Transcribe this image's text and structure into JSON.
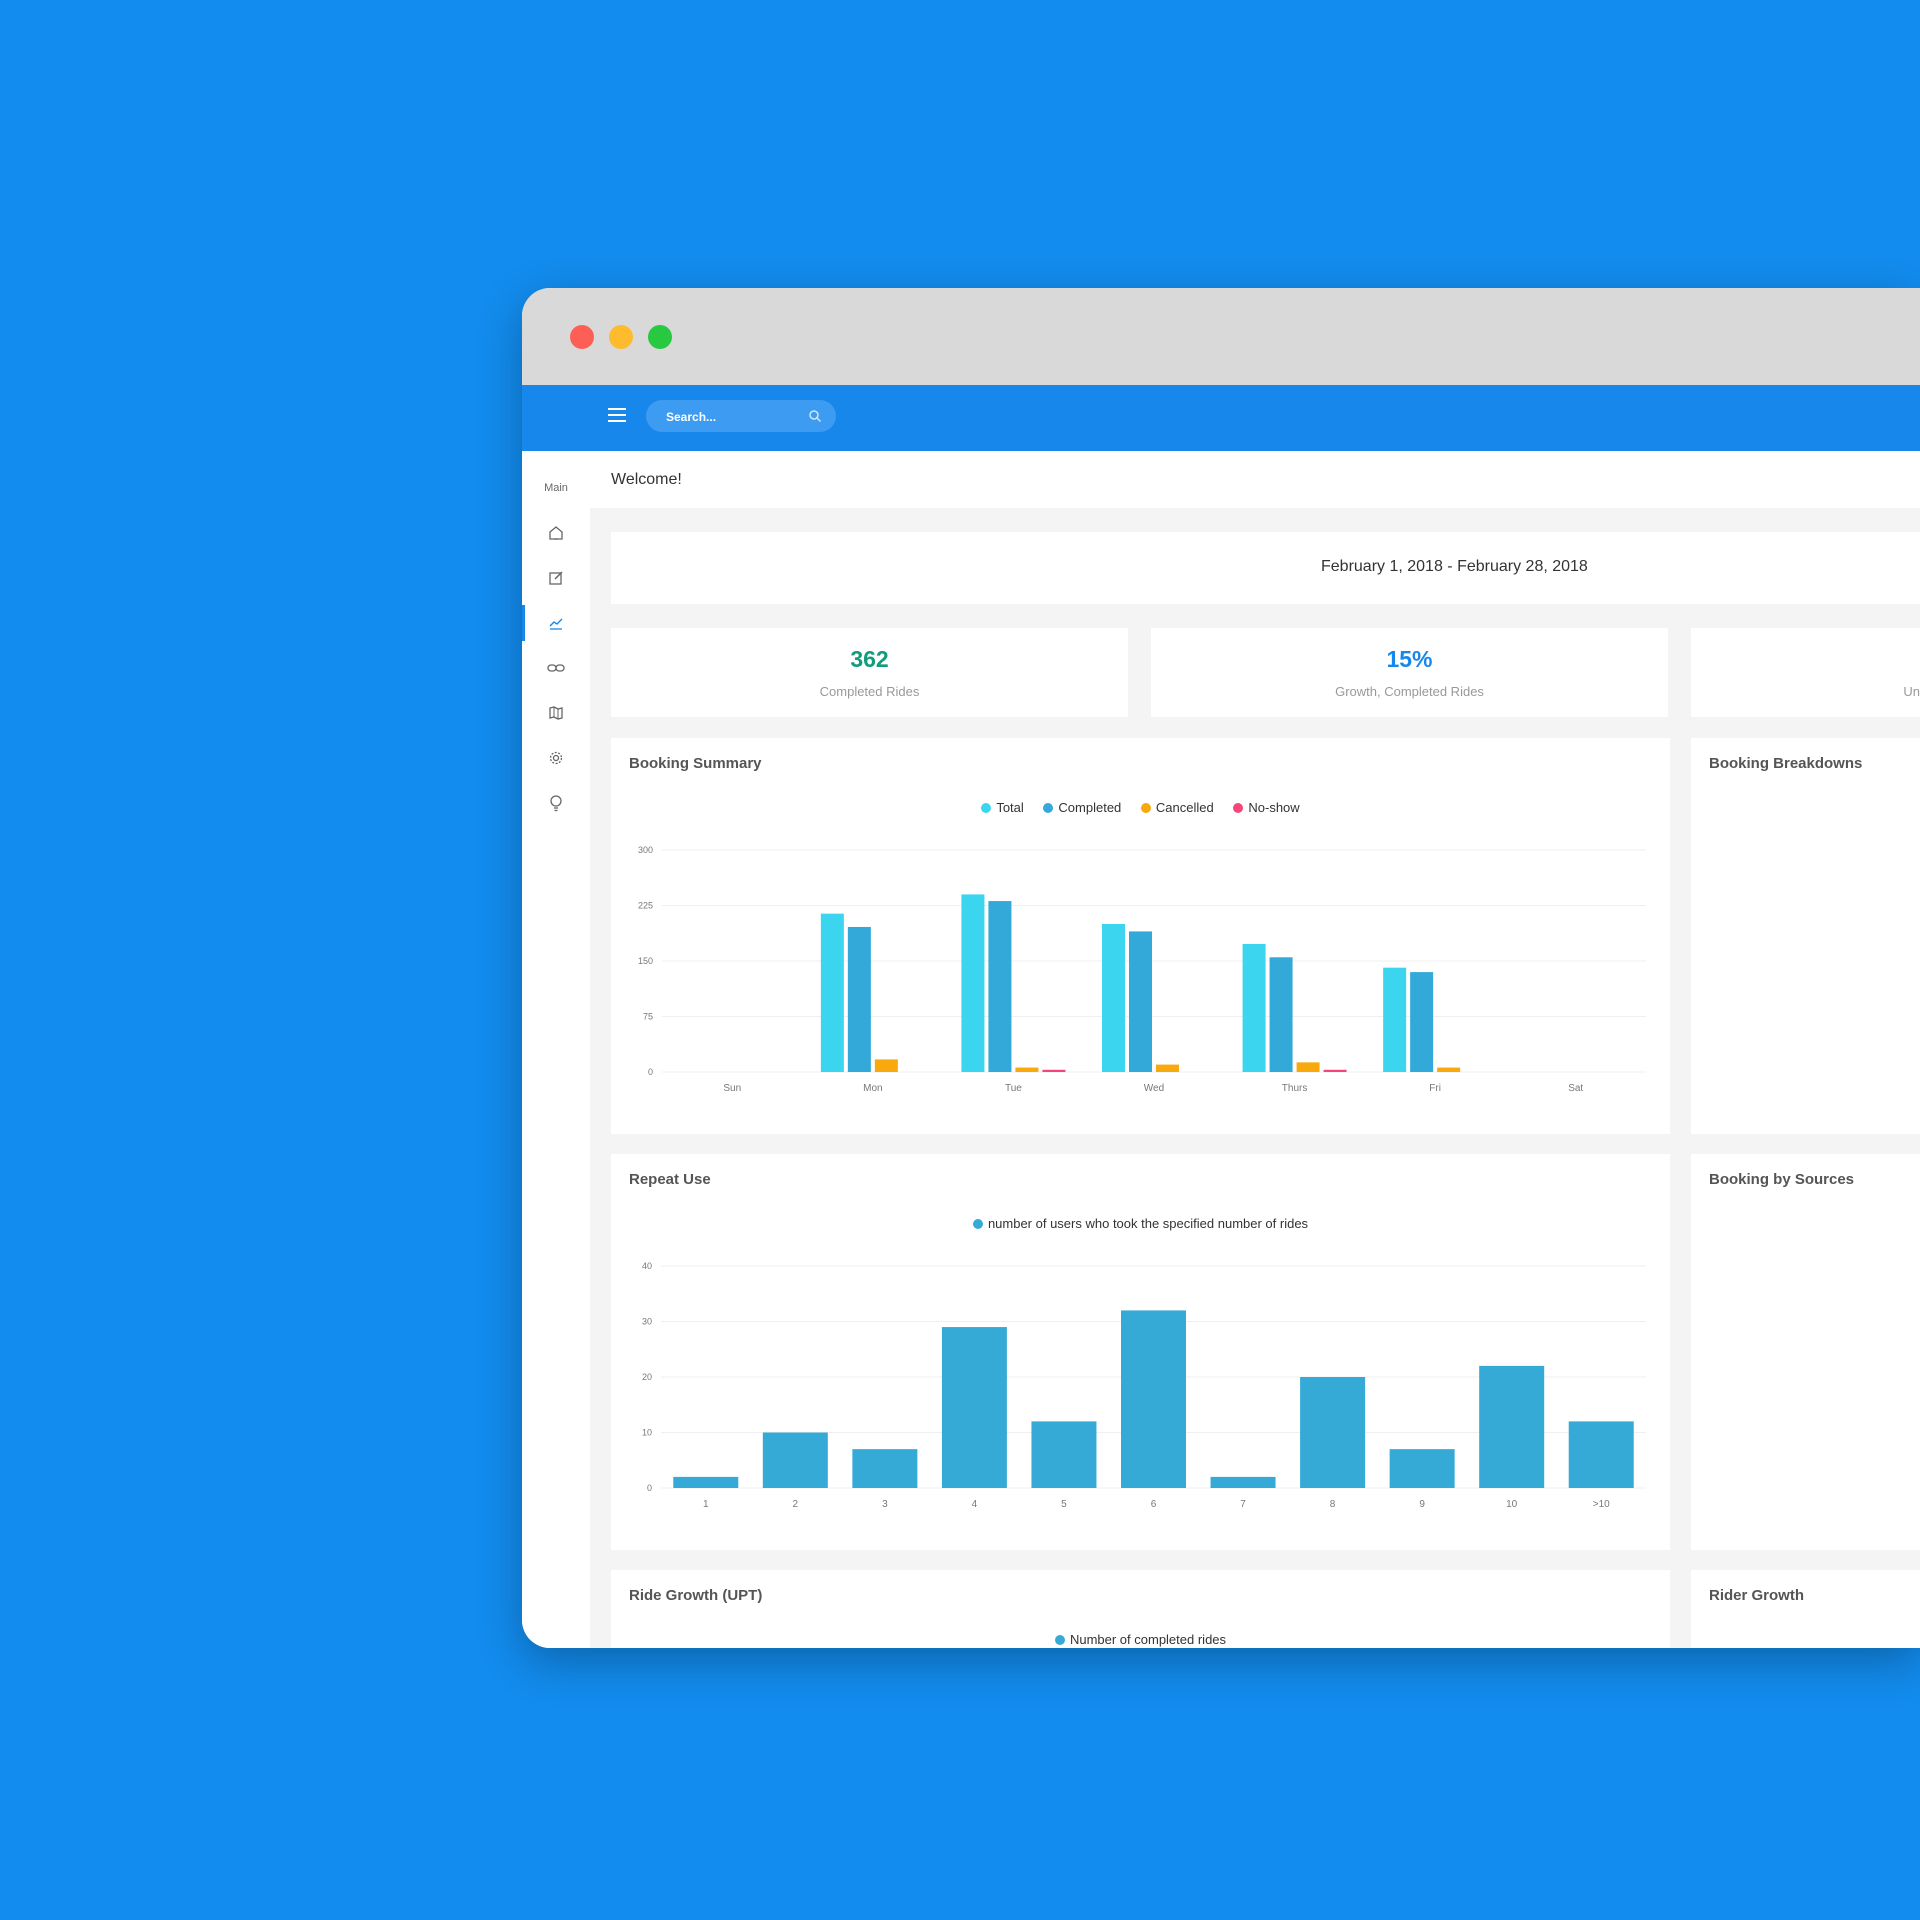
{
  "window": {
    "traffic_lights": {
      "close": "#fd5f57",
      "minimize": "#febb2e",
      "maximize": "#28c840"
    }
  },
  "topbar": {
    "color": "#1787ec",
    "search": {
      "placeholder": "Search..."
    },
    "icons": [
      "hamburger-menu-icon",
      "search-icon"
    ]
  },
  "sidebar": {
    "title": "Main",
    "items": [
      {
        "icon": "home-icon",
        "active": false
      },
      {
        "icon": "edit-icon",
        "active": false
      },
      {
        "icon": "chart-icon",
        "active": true
      },
      {
        "icon": "link-icon",
        "active": false
      },
      {
        "icon": "map-icon",
        "active": false
      },
      {
        "icon": "settings-icon",
        "active": false
      },
      {
        "icon": "lightbulb-icon",
        "active": false
      }
    ]
  },
  "header": {
    "welcome": "Welcome!"
  },
  "date_range": "February 1, 2018 - February 28, 2018",
  "stats": [
    {
      "value": "362",
      "label": "Completed Rides",
      "color": "#119c7a"
    },
    {
      "value": "15%",
      "label": "Growth, Completed Rides",
      "color": "#1787ec"
    },
    {
      "value": "",
      "label": "Un"
    }
  ],
  "cards": {
    "booking_summary": "Booking Summary",
    "booking_breakdowns": "Booking Breakdowns",
    "repeat_use": "Repeat Use",
    "booking_by_sources": "Booking by Sources",
    "ride_growth": "Ride Growth (UPT)",
    "rider_growth": "Rider Growth"
  },
  "ride_growth_legend": "Number of completed rides",
  "chart_data": [
    {
      "type": "bar",
      "title": "Booking Summary",
      "categories": [
        "Sun",
        "Mon",
        "Tue",
        "Wed",
        "Thurs",
        "Fri",
        "Sat"
      ],
      "ylim": [
        0,
        300
      ],
      "yticks": [
        "0",
        "75",
        "150",
        "225",
        "300"
      ],
      "grid": true,
      "legend_position": "top-center",
      "series": [
        {
          "name": "Total",
          "color": "#3bd5f0",
          "values": [
            0,
            214,
            240,
            200,
            173,
            141,
            0
          ]
        },
        {
          "name": "Completed",
          "color": "#33a9d9",
          "values": [
            0,
            196,
            231,
            190,
            155,
            135,
            0
          ]
        },
        {
          "name": "Cancelled",
          "color": "#f7a90d",
          "values": [
            0,
            17,
            6,
            10,
            13,
            6,
            0
          ]
        },
        {
          "name": "No-show",
          "color": "#f5457a",
          "values": [
            0,
            0,
            3,
            0,
            3,
            0,
            0
          ]
        }
      ]
    },
    {
      "type": "bar",
      "title": "Repeat Use",
      "categories": [
        "1",
        "2",
        "3",
        "4",
        "5",
        "6",
        "7",
        "8",
        "9",
        "10",
        ">10"
      ],
      "ylim": [
        0,
        40
      ],
      "yticks": [
        "0",
        "10",
        "20",
        "30",
        "40"
      ],
      "grid": true,
      "legend_position": "top-center",
      "series": [
        {
          "name": "number of users who took the specified number of rides",
          "color": "#36aad6",
          "values": [
            2,
            10,
            7,
            29,
            12,
            32,
            2,
            20,
            7,
            22,
            12
          ]
        }
      ]
    }
  ]
}
